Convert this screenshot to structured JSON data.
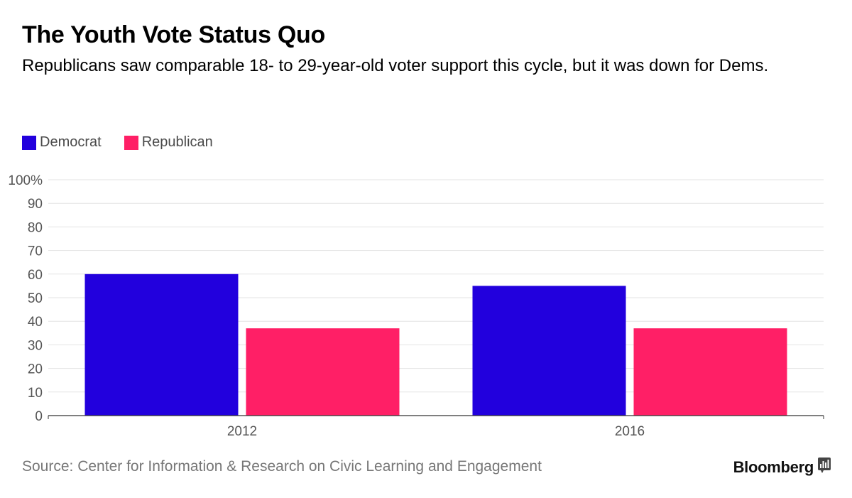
{
  "header": {
    "title": "The Youth Vote Status Quo",
    "subtitle": "Republicans saw comparable 18- to 29-year-old voter support this cycle, but it was down for Dems."
  },
  "footer": {
    "source": "Source: Center for Information & Research on Civic Learning and Engagement",
    "brand": "Bloomberg",
    "brand_icon": "bar-chart-icon"
  },
  "chart_data": {
    "type": "bar",
    "title": "The Youth Vote Status Quo",
    "subtitle": "Republicans saw comparable 18- to 29-year-old voter support this cycle, but it was down for Dems.",
    "categories": [
      "2012",
      "2016"
    ],
    "series": [
      {
        "name": "Democrat",
        "color": "#2200dd",
        "values": [
          60,
          55
        ]
      },
      {
        "name": "Republican",
        "color": "#ff1f66",
        "values": [
          37,
          37
        ]
      }
    ],
    "ylim": [
      0,
      100
    ],
    "yticks": [
      "0",
      "10",
      "20",
      "30",
      "40",
      "50",
      "60",
      "70",
      "80",
      "90",
      "100%"
    ],
    "xlabel": "",
    "ylabel": "",
    "grid": true,
    "legend_position": "top-left"
  }
}
